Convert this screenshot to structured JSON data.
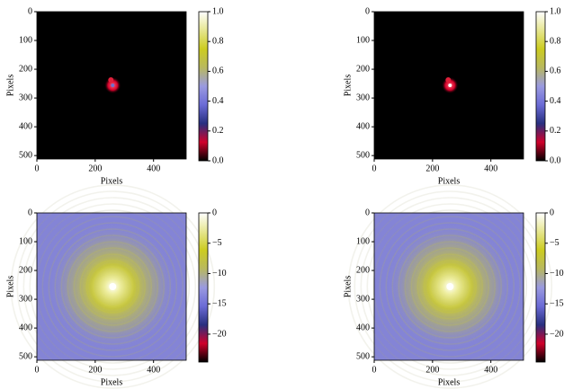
{
  "chart_data": [
    {
      "type": "image",
      "xlabel": "Pixels",
      "ylabel": "Pixels",
      "xlim": [
        0,
        512
      ],
      "ylim": [
        512,
        0
      ],
      "xticks": [
        0,
        200,
        400
      ],
      "yticks": [
        0,
        100,
        200,
        300,
        400,
        500
      ],
      "colorbar": {
        "lim": [
          0,
          1
        ],
        "ticks": [
          {
            "value": 0,
            "label": "0.0"
          },
          0.2,
          0.4,
          0.6,
          0.8,
          {
            "value": 1,
            "label": "1.0"
          }
        ]
      },
      "colormap": [
        "#000000",
        "#d0002a",
        "#283080",
        "#6b6bd6",
        "#9a9ae0",
        "#b8b860",
        "#cccc20",
        "#e6e690",
        "#ffffff"
      ]
    },
    {
      "type": "image",
      "xlabel": "Pixels",
      "ylabel": "Pixels",
      "xlim": [
        0,
        512
      ],
      "ylim": [
        512,
        0
      ],
      "xticks": [
        0,
        200,
        400
      ],
      "yticks": [
        0,
        100,
        200,
        300,
        400,
        500
      ],
      "colorbar": {
        "lim": [
          0,
          1
        ],
        "ticks": [
          {
            "value": 0,
            "label": "0.0"
          },
          0.2,
          0.4,
          0.6,
          0.8,
          {
            "value": 1,
            "label": "1.0"
          }
        ]
      },
      "colormap": [
        "#000000",
        "#d0002a",
        "#283080",
        "#6b6bd6",
        "#9a9ae0",
        "#b8b860",
        "#cccc20",
        "#e6e690",
        "#ffffff"
      ]
    },
    {
      "type": "image",
      "xlabel": "Pixels",
      "ylabel": "Pixels",
      "xlim": [
        0,
        512
      ],
      "ylim": [
        512,
        0
      ],
      "xticks": [
        0,
        200,
        400
      ],
      "yticks": [
        0,
        100,
        200,
        300,
        400,
        500
      ],
      "colorbar": {
        "lim": [
          -24.6,
          0
        ],
        "ticks": [
          {
            "value": -20,
            "label": "−20"
          },
          {
            "value": -15,
            "label": "−15"
          },
          {
            "value": -10,
            "label": "−10"
          },
          {
            "value": -5,
            "label": "−5"
          },
          0
        ]
      },
      "colormap": [
        "#000000",
        "#d0002a",
        "#283080",
        "#6b6bd6",
        "#9a9ae0",
        "#b8b860",
        "#cccc20",
        "#e6e690",
        "#ffffff"
      ]
    },
    {
      "type": "image",
      "xlabel": "Pixels",
      "ylabel": "Pixels",
      "xlim": [
        0,
        512
      ],
      "ylim": [
        512,
        0
      ],
      "xticks": [
        0,
        200,
        400
      ],
      "yticks": [
        0,
        100,
        200,
        300,
        400,
        500
      ],
      "colorbar": {
        "lim": [
          -24.6,
          0
        ],
        "ticks": [
          {
            "value": -20,
            "label": "−20"
          },
          {
            "value": -15,
            "label": "−15"
          },
          {
            "value": -10,
            "label": "−10"
          },
          {
            "value": -5,
            "label": "−5"
          },
          0
        ]
      },
      "colormap": [
        "#000000",
        "#d0002a",
        "#283080",
        "#6b6bd6",
        "#9a9ae0",
        "#b8b860",
        "#cccc20",
        "#e6e690",
        "#ffffff"
      ]
    }
  ]
}
